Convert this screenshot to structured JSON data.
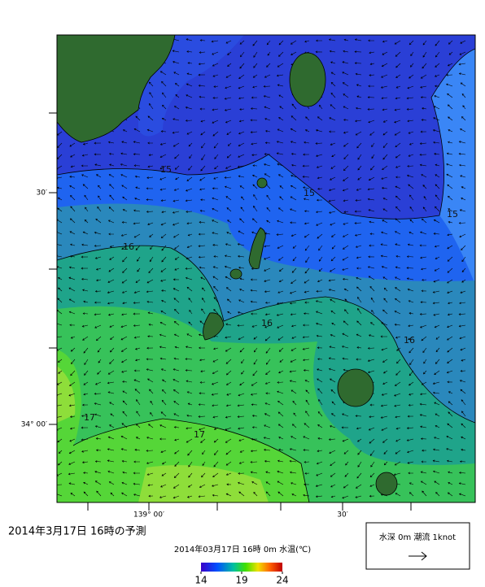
{
  "title": "2014年3月17日  16時の予測",
  "map": {
    "lat_labels": [
      "30′",
      "34° 00′"
    ],
    "lon_labels": [
      "139° 00′",
      "30′"
    ],
    "contour_labels": [
      15,
      15,
      15,
      16,
      16,
      16,
      17,
      17
    ]
  },
  "colorbar": {
    "caption": "2014年03月17日 16時 0m 水温(℃)",
    "ticks": [
      14,
      19,
      24
    ]
  },
  "legend": {
    "text": "水深 0m 潮流 1knot"
  }
}
